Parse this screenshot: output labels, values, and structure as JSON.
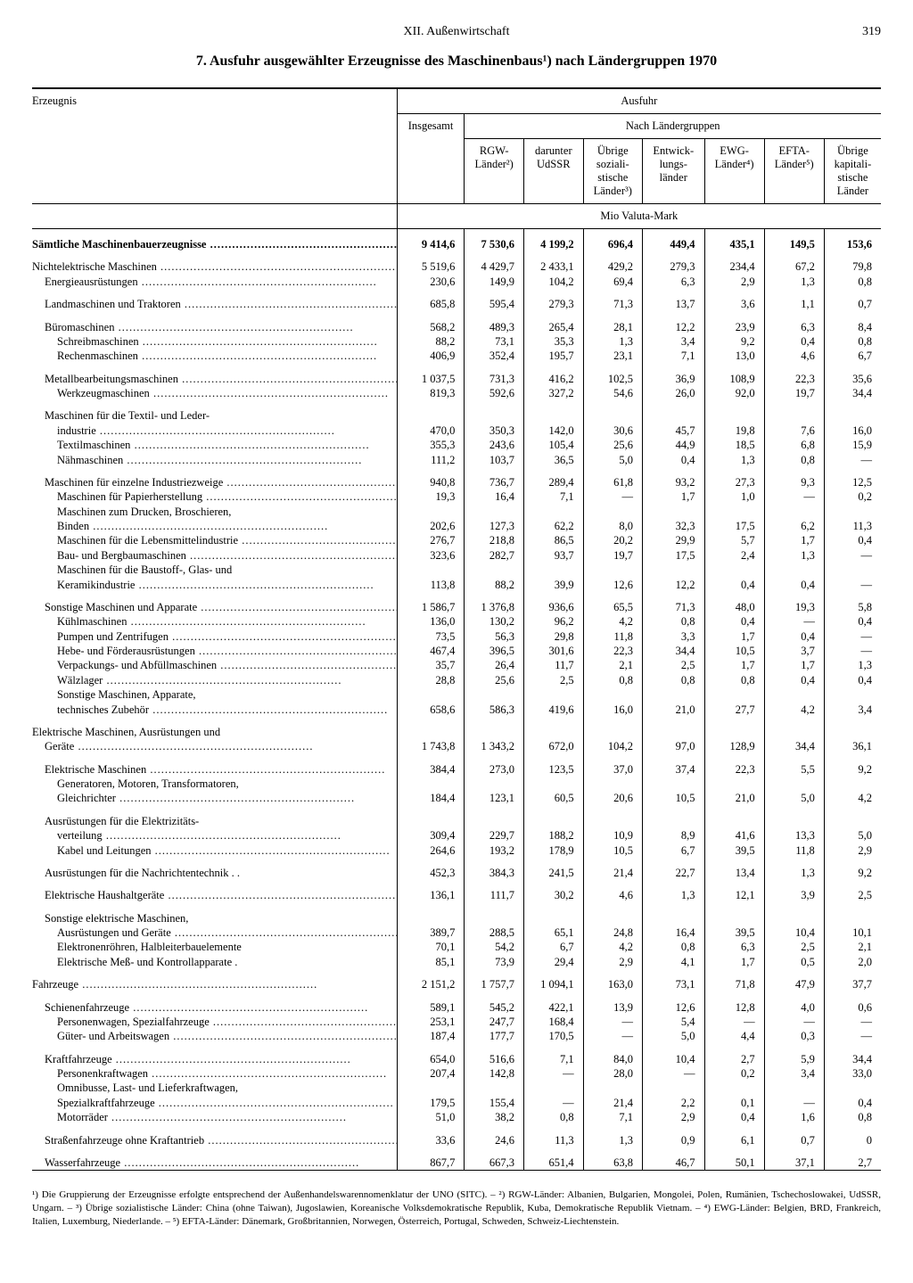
{
  "chapter": "XII. Außenwirtschaft",
  "page": "319",
  "title": "7. Ausfuhr ausgewählter Erzeugnisse des Maschinenbaus¹) nach Ländergruppen 1970",
  "columns": {
    "product": "Erzeugnis",
    "ausfuhr": "Ausfuhr",
    "groups": "Nach Ländergruppen",
    "total": "Insgesamt",
    "c1": "RGW-\nLänder²)",
    "c2": "darunter\nUdSSR",
    "c3": "Übrige\nsoziali-\nstische\nLänder³)",
    "c4": "Entwick-\nlungs-\nländer",
    "c5": "EWG-\nLänder⁴)",
    "c6": "EFTA-\nLänder⁵)",
    "c7": "Übrige\nkapitali-\nstische\nLänder"
  },
  "unit": "Mio Valuta-Mark",
  "rows": [
    {
      "l": "Sämtliche Maschinenbauerzeugnisse",
      "i": 0,
      "b": true,
      "gap": true,
      "v": [
        "9 414,6",
        "7 530,6",
        "4 199,2",
        "696,4",
        "449,4",
        "435,1",
        "149,5",
        "153,6"
      ]
    },
    {
      "l": "Nichtelektrische Maschinen",
      "i": 0,
      "gap": true,
      "v": [
        "5 519,6",
        "4 429,7",
        "2 433,1",
        "429,2",
        "279,3",
        "234,4",
        "67,2",
        "79,8"
      ]
    },
    {
      "l": "Energieausrüstungen",
      "i": 1,
      "v": [
        "230,6",
        "149,9",
        "104,2",
        "69,4",
        "6,3",
        "2,9",
        "1,3",
        "0,8"
      ]
    },
    {
      "l": "Landmaschinen und Traktoren",
      "i": 1,
      "gap": true,
      "v": [
        "685,8",
        "595,4",
        "279,3",
        "71,3",
        "13,7",
        "3,6",
        "1,1",
        "0,7"
      ]
    },
    {
      "l": "Büromaschinen",
      "i": 1,
      "gap": true,
      "v": [
        "568,2",
        "489,3",
        "265,4",
        "28,1",
        "12,2",
        "23,9",
        "6,3",
        "8,4"
      ]
    },
    {
      "l": "Schreibmaschinen",
      "i": 2,
      "v": [
        "88,2",
        "73,1",
        "35,3",
        "1,3",
        "3,4",
        "9,2",
        "0,4",
        "0,8"
      ]
    },
    {
      "l": "Rechenmaschinen",
      "i": 2,
      "v": [
        "406,9",
        "352,4",
        "195,7",
        "23,1",
        "7,1",
        "13,0",
        "4,6",
        "6,7"
      ]
    },
    {
      "l": "Metallbearbeitungsmaschinen",
      "i": 1,
      "gap": true,
      "v": [
        "1 037,5",
        "731,3",
        "416,2",
        "102,5",
        "36,9",
        "108,9",
        "22,3",
        "35,6"
      ]
    },
    {
      "l": "Werkzeugmaschinen",
      "i": 2,
      "v": [
        "819,3",
        "592,6",
        "327,2",
        "54,6",
        "26,0",
        "92,0",
        "19,7",
        "34,4"
      ]
    },
    {
      "l": "Maschinen für die Textil- und Leder-",
      "i": 1,
      "gap": true,
      "v": [
        "",
        "",
        "",
        "",
        "",
        "",
        "",
        ""
      ]
    },
    {
      "l": "industrie",
      "i": 2,
      "v": [
        "470,0",
        "350,3",
        "142,0",
        "30,6",
        "45,7",
        "19,8",
        "7,6",
        "16,0"
      ]
    },
    {
      "l": "Textilmaschinen",
      "i": 2,
      "v": [
        "355,3",
        "243,6",
        "105,4",
        "25,6",
        "44,9",
        "18,5",
        "6,8",
        "15,9"
      ]
    },
    {
      "l": "Nähmaschinen",
      "i": 2,
      "v": [
        "111,2",
        "103,7",
        "36,5",
        "5,0",
        "0,4",
        "1,3",
        "0,8",
        "—"
      ]
    },
    {
      "l": "Maschinen für einzelne Industriezweige",
      "i": 1,
      "gap": true,
      "v": [
        "940,8",
        "736,7",
        "289,4",
        "61,8",
        "93,2",
        "27,3",
        "9,3",
        "12,5"
      ]
    },
    {
      "l": "Maschinen für Papierherstellung",
      "i": 2,
      "v": [
        "19,3",
        "16,4",
        "7,1",
        "—",
        "1,7",
        "1,0",
        "—",
        "0,2"
      ]
    },
    {
      "l": "Maschinen zum Drucken, Broschieren,",
      "i": 2,
      "v": [
        "",
        "",
        "",
        "",
        "",
        "",
        "",
        ""
      ]
    },
    {
      "l": "Binden",
      "i": 2,
      "v": [
        "202,6",
        "127,3",
        "62,2",
        "8,0",
        "32,3",
        "17,5",
        "6,2",
        "11,3"
      ]
    },
    {
      "l": "Maschinen für die Lebensmittelindustrie",
      "i": 2,
      "v": [
        "276,7",
        "218,8",
        "86,5",
        "20,2",
        "29,9",
        "5,7",
        "1,7",
        "0,4"
      ]
    },
    {
      "l": "Bau- und Bergbaumaschinen",
      "i": 2,
      "v": [
        "323,6",
        "282,7",
        "93,7",
        "19,7",
        "17,5",
        "2,4",
        "1,3",
        "—"
      ]
    },
    {
      "l": "Maschinen für die Baustoff-, Glas- und",
      "i": 2,
      "v": [
        "",
        "",
        "",
        "",
        "",
        "",
        "",
        ""
      ]
    },
    {
      "l": "Keramikindustrie",
      "i": 2,
      "v": [
        "113,8",
        "88,2",
        "39,9",
        "12,6",
        "12,2",
        "0,4",
        "0,4",
        "—"
      ]
    },
    {
      "l": "Sonstige Maschinen und Apparate",
      "i": 1,
      "gap": true,
      "v": [
        "1 586,7",
        "1 376,8",
        "936,6",
        "65,5",
        "71,3",
        "48,0",
        "19,3",
        "5,8"
      ]
    },
    {
      "l": "Kühlmaschinen",
      "i": 2,
      "v": [
        "136,0",
        "130,2",
        "96,2",
        "4,2",
        "0,8",
        "0,4",
        "—",
        "0,4"
      ]
    },
    {
      "l": "Pumpen und Zentrifugen",
      "i": 2,
      "v": [
        "73,5",
        "56,3",
        "29,8",
        "11,8",
        "3,3",
        "1,7",
        "0,4",
        "—"
      ]
    },
    {
      "l": "Hebe- und Förderausrüstungen",
      "i": 2,
      "v": [
        "467,4",
        "396,5",
        "301,6",
        "22,3",
        "34,4",
        "10,5",
        "3,7",
        "—"
      ]
    },
    {
      "l": "Verpackungs- und Abfüllmaschinen",
      "i": 2,
      "v": [
        "35,7",
        "26,4",
        "11,7",
        "2,1",
        "2,5",
        "1,7",
        "1,7",
        "1,3"
      ]
    },
    {
      "l": "Wälzlager",
      "i": 2,
      "v": [
        "28,8",
        "25,6",
        "2,5",
        "0,8",
        "0,8",
        "0,8",
        "0,4",
        "0,4"
      ]
    },
    {
      "l": "Sonstige Maschinen, Apparate,",
      "i": 2,
      "v": [
        "",
        "",
        "",
        "",
        "",
        "",
        "",
        ""
      ]
    },
    {
      "l": "technisches Zubehör",
      "i": 2,
      "v": [
        "658,6",
        "586,3",
        "419,6",
        "16,0",
        "21,0",
        "27,7",
        "4,2",
        "3,4"
      ]
    },
    {
      "l": "Elektrische Maschinen, Ausrüstungen und",
      "i": 0,
      "gap": true,
      "v": [
        "",
        "",
        "",
        "",
        "",
        "",
        "",
        ""
      ]
    },
    {
      "l": "Geräte",
      "i": 1,
      "v": [
        "1 743,8",
        "1 343,2",
        "672,0",
        "104,2",
        "97,0",
        "128,9",
        "34,4",
        "36,1"
      ]
    },
    {
      "l": "Elektrische Maschinen",
      "i": 1,
      "gap": true,
      "v": [
        "384,4",
        "273,0",
        "123,5",
        "37,0",
        "37,4",
        "22,3",
        "5,5",
        "9,2"
      ]
    },
    {
      "l": "Generatoren, Motoren, Transformatoren,",
      "i": 2,
      "v": [
        "",
        "",
        "",
        "",
        "",
        "",
        "",
        ""
      ]
    },
    {
      "l": "Gleichrichter",
      "i": 2,
      "v": [
        "184,4",
        "123,1",
        "60,5",
        "20,6",
        "10,5",
        "21,0",
        "5,0",
        "4,2"
      ]
    },
    {
      "l": "Ausrüstungen für die Elektrizitäts-",
      "i": 1,
      "gap": true,
      "v": [
        "",
        "",
        "",
        "",
        "",
        "",
        "",
        ""
      ]
    },
    {
      "l": "verteilung",
      "i": 2,
      "v": [
        "309,4",
        "229,7",
        "188,2",
        "10,9",
        "8,9",
        "41,6",
        "13,3",
        "5,0"
      ]
    },
    {
      "l": "Kabel und Leitungen",
      "i": 2,
      "v": [
        "264,6",
        "193,2",
        "178,9",
        "10,5",
        "6,7",
        "39,5",
        "11,8",
        "2,9"
      ]
    },
    {
      "l": "Ausrüstungen für die Nachrichtentechnik . .",
      "i": 1,
      "gap": true,
      "nodots": true,
      "v": [
        "452,3",
        "384,3",
        "241,5",
        "21,4",
        "22,7",
        "13,4",
        "1,3",
        "9,2"
      ]
    },
    {
      "l": "Elektrische Haushaltgeräte",
      "i": 1,
      "gap": true,
      "v": [
        "136,1",
        "111,7",
        "30,2",
        "4,6",
        "1,3",
        "12,1",
        "3,9",
        "2,5"
      ]
    },
    {
      "l": "Sonstige elektrische Maschinen,",
      "i": 1,
      "gap": true,
      "v": [
        "",
        "",
        "",
        "",
        "",
        "",
        "",
        ""
      ]
    },
    {
      "l": "Ausrüstungen und Geräte",
      "i": 2,
      "v": [
        "389,7",
        "288,5",
        "65,1",
        "24,8",
        "16,4",
        "39,5",
        "10,4",
        "10,1"
      ]
    },
    {
      "l": "Elektronenröhren, Halbleiterbauelemente",
      "i": 2,
      "nodots": true,
      "v": [
        "70,1",
        "54,2",
        "6,7",
        "4,2",
        "0,8",
        "6,3",
        "2,5",
        "2,1"
      ]
    },
    {
      "l": "Elektrische Meß- und Kontrollapparate .",
      "i": 2,
      "nodots": true,
      "v": [
        "85,1",
        "73,9",
        "29,4",
        "2,9",
        "4,1",
        "1,7",
        "0,5",
        "2,0"
      ]
    },
    {
      "l": "Fahrzeuge",
      "i": 0,
      "gap": true,
      "v": [
        "2 151,2",
        "1 757,7",
        "1 094,1",
        "163,0",
        "73,1",
        "71,8",
        "47,9",
        "37,7"
      ]
    },
    {
      "l": "Schienenfahrzeuge",
      "i": 1,
      "gap": true,
      "v": [
        "589,1",
        "545,2",
        "422,1",
        "13,9",
        "12,6",
        "12,8",
        "4,0",
        "0,6"
      ]
    },
    {
      "l": "Personenwagen, Spezialfahrzeuge",
      "i": 2,
      "v": [
        "253,1",
        "247,7",
        "168,4",
        "—",
        "5,4",
        "—",
        "—",
        "—"
      ]
    },
    {
      "l": "Güter- und Arbeitswagen",
      "i": 2,
      "v": [
        "187,4",
        "177,7",
        "170,5",
        "—",
        "5,0",
        "4,4",
        "0,3",
        "—"
      ]
    },
    {
      "l": "Kraftfahrzeuge",
      "i": 1,
      "gap": true,
      "v": [
        "654,0",
        "516,6",
        "7,1",
        "84,0",
        "10,4",
        "2,7",
        "5,9",
        "34,4"
      ]
    },
    {
      "l": "Personenkraftwagen",
      "i": 2,
      "v": [
        "207,4",
        "142,8",
        "—",
        "28,0",
        "—",
        "0,2",
        "3,4",
        "33,0"
      ]
    },
    {
      "l": "Omnibusse, Last- und Lieferkraftwagen,",
      "i": 2,
      "v": [
        "",
        "",
        "",
        "",
        "",
        "",
        "",
        ""
      ]
    },
    {
      "l": "Spezialkraftfahrzeuge",
      "i": 2,
      "v": [
        "179,5",
        "155,4",
        "—",
        "21,4",
        "2,2",
        "0,1",
        "—",
        "0,4"
      ]
    },
    {
      "l": "Motorräder",
      "i": 2,
      "v": [
        "51,0",
        "38,2",
        "0,8",
        "7,1",
        "2,9",
        "0,4",
        "1,6",
        "0,8"
      ]
    },
    {
      "l": "Straßenfahrzeuge ohne Kraftantrieb",
      "i": 1,
      "gap": true,
      "v": [
        "33,6",
        "24,6",
        "11,3",
        "1,3",
        "0,9",
        "6,1",
        "0,7",
        "0"
      ]
    },
    {
      "l": "Wasserfahrzeuge",
      "i": 1,
      "gap": true,
      "v": [
        "867,7",
        "667,3",
        "651,4",
        "63,8",
        "46,7",
        "50,1",
        "37,1",
        "2,7"
      ]
    }
  ],
  "footnote": "¹) Die Gruppierung der Erzeugnisse erfolgte entsprechend der Außenhandelswarennomenklatur der UNO (SITC). – ²) RGW-Länder: Albanien, Bulgarien, Mongolei, Polen, Rumänien, Tschechoslowakei, UdSSR, Ungarn. – ³) Übrige sozialistische Länder: China (ohne Taiwan), Jugoslawien, Koreanische Volksdemokratische Republik, Kuba, Demokratische Republik Vietnam. – ⁴) EWG-Länder: Belgien, BRD, Frankreich, Italien, Luxemburg, Niederlande. – ⁵) EFTA-Länder: Dänemark, Großbritannien, Norwegen, Österreich, Portugal, Schweden, Schweiz-Liechtenstein."
}
